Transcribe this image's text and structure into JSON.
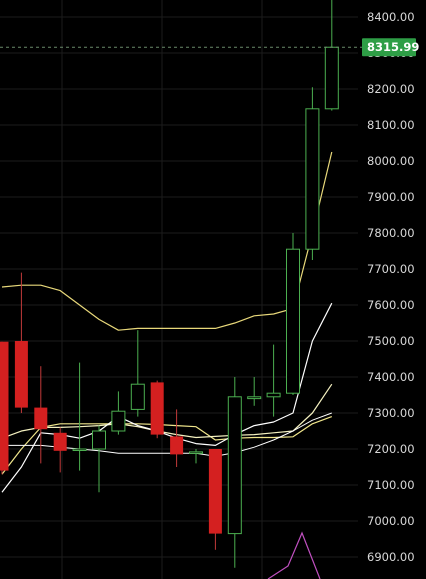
{
  "chart_data": {
    "type": "candlestick",
    "ylim": [
      6860,
      8460
    ],
    "y_ticks": [
      6900,
      7000,
      7100,
      7200,
      7300,
      7400,
      7500,
      7600,
      7700,
      7800,
      7900,
      8000,
      8100,
      8200,
      8300,
      8400
    ],
    "y_tick_labels": [
      "6900.00",
      "7000.00",
      "7100.00",
      "7200.00",
      "7300.00",
      "7400.00",
      "7500.00",
      "7600.00",
      "7700.00",
      "7800.00",
      "7900.00",
      "8000.00",
      "8100.00",
      "8200.00",
      "8300.00",
      "8400.00"
    ],
    "grid": true,
    "current_price": 8315.99,
    "current_price_label": "8315.99",
    "colors": {
      "background": "#000000",
      "grid": "#1c1c1c",
      "up_candle": "#4caf50",
      "down_candle": "#d42020",
      "price_marker": "#2e9e46",
      "ma_fast": "#ffffff",
      "ma_mid": "#f4f1c0",
      "ma_slow": "#f0e68c",
      "envelope": "#e8d87a",
      "indicator": "#c050c0"
    },
    "candles": [
      {
        "open": 7498,
        "high": 7498,
        "low": 7130,
        "close": 7140
      },
      {
        "open": 7500,
        "high": 7690,
        "low": 7300,
        "close": 7315
      },
      {
        "open": 7315,
        "high": 7430,
        "low": 7160,
        "close": 7255
      },
      {
        "open": 7245,
        "high": 7260,
        "low": 7135,
        "close": 7195
      },
      {
        "open": 7200,
        "high": 7440,
        "low": 7140,
        "close": 7200
      },
      {
        "open": 7200,
        "high": 7265,
        "low": 7080,
        "close": 7250
      },
      {
        "open": 7250,
        "high": 7360,
        "low": 7240,
        "close": 7305
      },
      {
        "open": 7310,
        "high": 7530,
        "low": 7290,
        "close": 7380
      },
      {
        "open": 7385,
        "high": 7390,
        "low": 7230,
        "close": 7240
      },
      {
        "open": 7235,
        "high": 7310,
        "low": 7150,
        "close": 7185
      },
      {
        "open": 7190,
        "high": 7200,
        "low": 7160,
        "close": 7192
      },
      {
        "open": 7200,
        "high": 7200,
        "low": 6920,
        "close": 6965
      },
      {
        "open": 6965,
        "high": 7400,
        "low": 6870,
        "close": 7345
      },
      {
        "open": 7340,
        "high": 7400,
        "low": 7320,
        "close": 7345
      },
      {
        "open": 7345,
        "high": 7490,
        "low": 7290,
        "close": 7355
      },
      {
        "open": 7355,
        "high": 7800,
        "low": 7350,
        "close": 7755
      },
      {
        "open": 7755,
        "high": 8205,
        "low": 7725,
        "close": 8145
      },
      {
        "open": 8145,
        "high": 8480,
        "low": 8140,
        "close": 8316
      }
    ],
    "lines": {
      "envelope_upper": [
        7650,
        7655,
        7655,
        7640,
        7600,
        7560,
        7530,
        7535,
        7535,
        7535,
        7535,
        7535,
        7550,
        7570,
        7575,
        7590,
        7800,
        8025
      ],
      "ma_slow": [
        7130,
        7200,
        7260,
        7270,
        7270,
        7270,
        7270,
        7270,
        7268,
        7265,
        7262,
        7225,
        7230,
        7232,
        7232,
        7234,
        7270,
        7290
      ],
      "ma_mid": [
        7230,
        7250,
        7260,
        7260,
        7262,
        7265,
        7270,
        7262,
        7250,
        7240,
        7232,
        7235,
        7238,
        7240,
        7245,
        7250,
        7300,
        7380
      ],
      "ma_fast": [
        7080,
        7150,
        7245,
        7240,
        7230,
        7250,
        7290,
        7265,
        7250,
        7230,
        7215,
        7210,
        7240,
        7265,
        7275,
        7300,
        7500,
        7605
      ],
      "ma_lower": [
        7210,
        7210,
        7210,
        7205,
        7200,
        7195,
        7188,
        7188,
        7188,
        7188,
        7188,
        7180,
        7190,
        7205,
        7225,
        7250,
        7280,
        7300
      ]
    }
  }
}
